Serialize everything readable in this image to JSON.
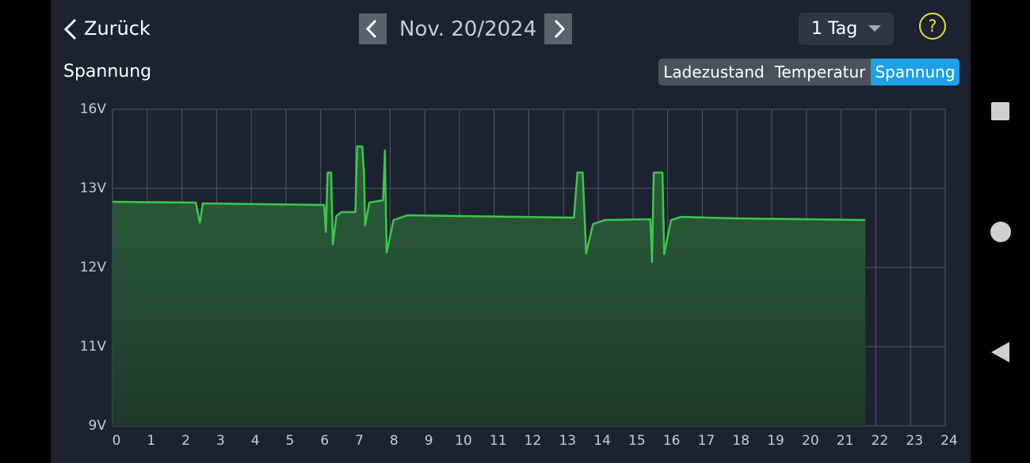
{
  "header": {
    "back": "Zurück",
    "date": "Nov. 20/2024",
    "range": "1 Tag",
    "help": "?"
  },
  "tabs": {
    "items": [
      "Ladezustand",
      "Temperatur",
      "Spannung"
    ],
    "active": 2
  },
  "chart_data": {
    "type": "line",
    "title": "Spannung",
    "color": "#3cc84a",
    "grid": true,
    "x": [
      0,
      2.4,
      2.5,
      2.52,
      2.6,
      6.1,
      6.15,
      6.2,
      6.3,
      6.35,
      6.45,
      6.6,
      7.0,
      7.05,
      7.2,
      7.25,
      7.28,
      7.4,
      7.8,
      7.85,
      7.9,
      8.1,
      8.5,
      13.3,
      13.4,
      13.55,
      13.65,
      13.85,
      14.2,
      15.5,
      15.55,
      15.6,
      15.85,
      15.9,
      16.1,
      16.4,
      18,
      20,
      21.7
    ],
    "values": [
      12.83,
      12.82,
      12.6,
      12.57,
      12.81,
      12.79,
      12.45,
      13.6,
      13.6,
      12.29,
      12.65,
      12.7,
      12.7,
      14.59,
      14.59,
      13.5,
      12.53,
      12.82,
      12.85,
      14.44,
      12.19,
      12.6,
      12.66,
      12.63,
      13.6,
      13.6,
      12.18,
      12.55,
      12.6,
      12.61,
      12.07,
      13.6,
      13.6,
      12.17,
      12.6,
      12.64,
      12.62,
      12.61,
      12.6
    ],
    "xlim": [
      0,
      24
    ],
    "xticks": [
      0,
      1,
      2,
      3,
      4,
      5,
      6,
      7,
      8,
      9,
      10,
      11,
      12,
      13,
      14,
      15,
      16,
      17,
      18,
      19,
      20,
      21,
      22,
      23,
      24
    ],
    "ylim": [
      9,
      16
    ],
    "yticks": [
      {
        "value": 9,
        "label": "9V"
      },
      {
        "value": 11,
        "label": "11V"
      },
      {
        "value": 12,
        "label": "12V"
      },
      {
        "value": 13,
        "label": "13V"
      },
      {
        "value": 16,
        "label": "16V"
      }
    ]
  }
}
